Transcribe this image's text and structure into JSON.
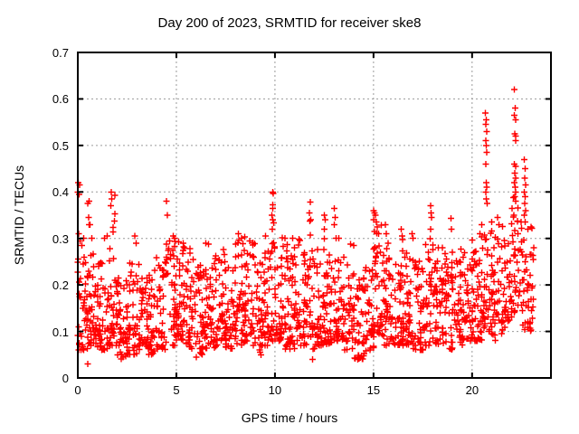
{
  "chart_data": {
    "type": "scatter",
    "title": "Day 200 of 2023, SRMTID for receiver ske8",
    "xlabel": "GPS time / hours",
    "ylabel": "SRMTID / TECUs",
    "xlim": [
      0,
      24
    ],
    "ylim": [
      0,
      0.7
    ],
    "xticks": [
      0,
      5,
      10,
      15,
      20
    ],
    "yticks": [
      0,
      0.1,
      0.2,
      0.3,
      0.4,
      0.5,
      0.6,
      0.7
    ],
    "xtick_labels": [
      "0",
      "5",
      "10",
      "15",
      "20"
    ],
    "ytick_labels": [
      "0",
      "0.1",
      "0.2",
      "0.3",
      "0.4",
      "0.5",
      "0.6",
      "0.7"
    ],
    "grid": true,
    "grid_style": "dashed",
    "grid_color": "#9a9a9a",
    "marker": "+",
    "marker_color": "#ff0000",
    "axis_color": "#000000",
    "background_color": "#ffffff",
    "x_data_range": [
      0.0,
      23.15
    ],
    "peaks": [
      [
        0.02,
        0.42
      ],
      [
        0.1,
        0.415
      ],
      [
        0.0,
        0.4
      ],
      [
        0.06,
        0.395
      ],
      [
        0.05,
        0.31
      ],
      [
        0.3,
        0.3
      ],
      [
        0.12,
        0.295
      ],
      [
        0.2,
        0.285
      ],
      [
        0.5,
        0.375
      ],
      [
        0.57,
        0.38
      ],
      [
        0.55,
        0.345
      ],
      [
        0.62,
        0.33
      ],
      [
        0.7,
        0.3
      ],
      [
        0.57,
        0.33
      ],
      [
        1.35,
        0.3
      ],
      [
        1.5,
        0.305
      ],
      [
        1.7,
        0.4
      ],
      [
        1.87,
        0.393
      ],
      [
        1.72,
        0.385
      ],
      [
        1.68,
        0.37
      ],
      [
        1.87,
        0.353
      ],
      [
        1.85,
        0.337
      ],
      [
        1.8,
        0.324
      ],
      [
        1.78,
        0.314
      ],
      [
        2.9,
        0.305
      ],
      [
        2.95,
        0.29
      ],
      [
        4.5,
        0.38
      ],
      [
        4.55,
        0.35
      ],
      [
        4.85,
        0.305
      ],
      [
        4.9,
        0.3
      ],
      [
        5.35,
        0.29
      ],
      [
        6.5,
        0.29
      ],
      [
        6.62,
        0.288
      ],
      [
        8.15,
        0.31
      ],
      [
        8.3,
        0.3
      ],
      [
        9.9,
        0.4
      ],
      [
        9.92,
        0.397
      ],
      [
        9.88,
        0.372
      ],
      [
        9.9,
        0.365
      ],
      [
        9.85,
        0.35
      ],
      [
        9.9,
        0.34
      ],
      [
        9.93,
        0.333
      ],
      [
        9.87,
        0.32
      ],
      [
        10.5,
        0.3
      ],
      [
        10.9,
        0.3
      ],
      [
        11.8,
        0.378
      ],
      [
        11.75,
        0.355
      ],
      [
        11.82,
        0.34
      ],
      [
        11.77,
        0.337
      ],
      [
        11.8,
        0.307
      ],
      [
        12.5,
        0.35
      ],
      [
        12.55,
        0.34
      ],
      [
        12.5,
        0.32
      ],
      [
        13.0,
        0.365
      ],
      [
        13.05,
        0.345
      ],
      [
        13.02,
        0.33
      ],
      [
        13.1,
        0.3
      ],
      [
        13.25,
        0.3
      ],
      [
        15.0,
        0.36
      ],
      [
        15.05,
        0.355
      ],
      [
        15.1,
        0.35
      ],
      [
        15.0,
        0.34
      ],
      [
        15.15,
        0.335
      ],
      [
        15.2,
        0.325
      ],
      [
        15.05,
        0.315
      ],
      [
        15.25,
        0.31
      ],
      [
        15.6,
        0.33
      ],
      [
        15.65,
        0.31
      ],
      [
        16.4,
        0.32
      ],
      [
        16.45,
        0.305
      ],
      [
        16.95,
        0.31
      ],
      [
        17.0,
        0.3
      ],
      [
        17.9,
        0.37
      ],
      [
        17.93,
        0.355
      ],
      [
        17.95,
        0.345
      ],
      [
        17.9,
        0.32
      ],
      [
        18.93,
        0.343
      ],
      [
        18.95,
        0.32
      ],
      [
        20.4,
        0.31
      ],
      [
        20.5,
        0.33
      ],
      [
        20.68,
        0.57
      ],
      [
        20.72,
        0.555
      ],
      [
        20.7,
        0.545
      ],
      [
        20.74,
        0.53
      ],
      [
        20.7,
        0.51
      ],
      [
        20.72,
        0.5
      ],
      [
        20.75,
        0.485
      ],
      [
        20.7,
        0.46
      ],
      [
        20.72,
        0.42
      ],
      [
        20.75,
        0.41
      ],
      [
        20.7,
        0.4
      ],
      [
        20.73,
        0.385
      ],
      [
        20.76,
        0.375
      ],
      [
        21.3,
        0.345
      ],
      [
        21.35,
        0.33
      ],
      [
        22.15,
        0.62
      ],
      [
        22.18,
        0.58
      ],
      [
        22.15,
        0.565
      ],
      [
        22.2,
        0.555
      ],
      [
        22.17,
        0.525
      ],
      [
        22.2,
        0.52
      ],
      [
        22.22,
        0.51
      ],
      [
        22.15,
        0.46
      ],
      [
        22.2,
        0.455
      ],
      [
        22.17,
        0.44
      ],
      [
        22.2,
        0.43
      ],
      [
        22.15,
        0.42
      ],
      [
        22.18,
        0.41
      ],
      [
        22.2,
        0.4
      ],
      [
        22.17,
        0.39
      ],
      [
        22.22,
        0.38
      ],
      [
        22.65,
        0.47
      ],
      [
        22.7,
        0.45
      ],
      [
        22.68,
        0.43
      ],
      [
        22.72,
        0.415
      ],
      [
        22.65,
        0.4
      ],
      [
        22.7,
        0.39
      ],
      [
        22.68,
        0.375
      ],
      [
        22.72,
        0.36
      ],
      [
        22.65,
        0.35
      ],
      [
        22.7,
        0.335
      ],
      [
        0.5,
        0.03
      ],
      [
        2.3,
        0.045
      ],
      [
        6.0,
        0.045
      ],
      [
        9.3,
        0.05
      ],
      [
        11.9,
        0.04
      ],
      [
        14.2,
        0.04
      ]
    ],
    "bands": [
      [
        0.0,
        0.5,
        0.06,
        0.26,
        40
      ],
      [
        0.5,
        1.0,
        0.07,
        0.24,
        40
      ],
      [
        1.0,
        1.5,
        0.06,
        0.22,
        40
      ],
      [
        1.5,
        2.0,
        0.07,
        0.26,
        40
      ],
      [
        2.0,
        2.5,
        0.04,
        0.2,
        40
      ],
      [
        2.5,
        3.0,
        0.05,
        0.23,
        40
      ],
      [
        3.0,
        3.5,
        0.06,
        0.23,
        40
      ],
      [
        3.5,
        4.0,
        0.05,
        0.21,
        40
      ],
      [
        4.0,
        4.5,
        0.06,
        0.25,
        40
      ],
      [
        4.5,
        5.0,
        0.07,
        0.27,
        40
      ],
      [
        5.0,
        5.5,
        0.08,
        0.27,
        40
      ],
      [
        5.5,
        6.0,
        0.06,
        0.25,
        40
      ],
      [
        6.0,
        6.5,
        0.05,
        0.23,
        40
      ],
      [
        6.5,
        7.0,
        0.06,
        0.25,
        40
      ],
      [
        7.0,
        7.5,
        0.07,
        0.25,
        40
      ],
      [
        7.5,
        8.0,
        0.06,
        0.24,
        40
      ],
      [
        8.0,
        8.5,
        0.07,
        0.28,
        40
      ],
      [
        8.5,
        9.0,
        0.07,
        0.27,
        40
      ],
      [
        9.0,
        9.5,
        0.05,
        0.24,
        40
      ],
      [
        9.5,
        10.0,
        0.07,
        0.28,
        40
      ],
      [
        10.0,
        10.5,
        0.08,
        0.29,
        40
      ],
      [
        10.5,
        11.0,
        0.06,
        0.27,
        40
      ],
      [
        11.0,
        11.5,
        0.07,
        0.27,
        40
      ],
      [
        11.5,
        12.0,
        0.06,
        0.26,
        40
      ],
      [
        12.0,
        12.5,
        0.07,
        0.28,
        40
      ],
      [
        12.5,
        13.0,
        0.07,
        0.26,
        40
      ],
      [
        13.0,
        13.5,
        0.08,
        0.27,
        40
      ],
      [
        13.5,
        14.0,
        0.06,
        0.26,
        40
      ],
      [
        14.0,
        14.5,
        0.04,
        0.21,
        40
      ],
      [
        14.5,
        15.0,
        0.05,
        0.25,
        40
      ],
      [
        15.0,
        15.5,
        0.09,
        0.3,
        40
      ],
      [
        15.5,
        16.0,
        0.07,
        0.28,
        40
      ],
      [
        16.0,
        16.5,
        0.07,
        0.27,
        40
      ],
      [
        16.5,
        17.0,
        0.07,
        0.26,
        40
      ],
      [
        17.0,
        17.5,
        0.06,
        0.24,
        40
      ],
      [
        17.5,
        18.0,
        0.07,
        0.27,
        40
      ],
      [
        18.0,
        18.5,
        0.07,
        0.26,
        40
      ],
      [
        18.5,
        19.0,
        0.06,
        0.25,
        40
      ],
      [
        19.0,
        19.5,
        0.07,
        0.26,
        40
      ],
      [
        19.5,
        20.0,
        0.08,
        0.26,
        40
      ],
      [
        20.0,
        20.5,
        0.08,
        0.28,
        40
      ],
      [
        20.5,
        21.0,
        0.1,
        0.32,
        40
      ],
      [
        21.0,
        21.5,
        0.08,
        0.3,
        40
      ],
      [
        21.5,
        22.0,
        0.1,
        0.3,
        40
      ],
      [
        22.0,
        22.5,
        0.14,
        0.36,
        40
      ],
      [
        22.5,
        23.15,
        0.1,
        0.33,
        45
      ]
    ]
  }
}
